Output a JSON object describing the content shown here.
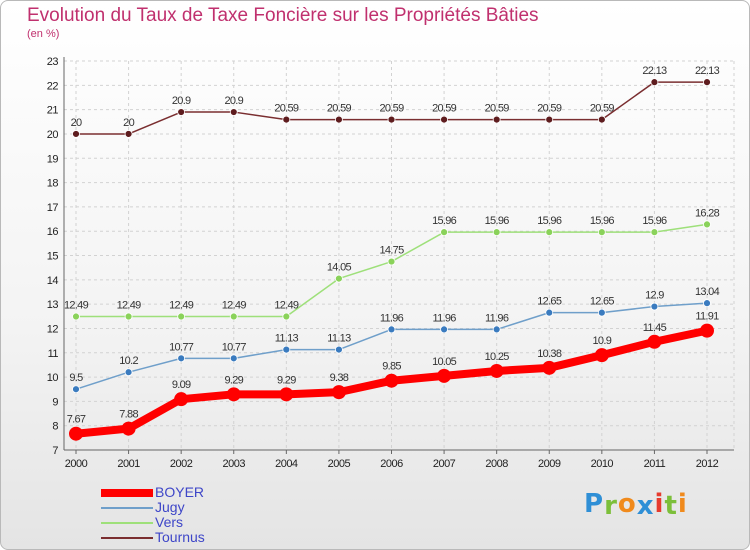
{
  "chart_data": {
    "type": "line",
    "title": "Evolution du Taux de Taxe Foncière sur les Propriétés Bâties",
    "subtitle": "(en %)",
    "xlabel": "",
    "ylabel": "",
    "ylim": [
      7,
      23
    ],
    "yticks": [
      "7",
      "8",
      "9",
      "10",
      "11",
      "12",
      "13",
      "14",
      "15",
      "16",
      "17",
      "18",
      "19",
      "20",
      "21",
      "22",
      "23"
    ],
    "categories": [
      "2000",
      "2001",
      "2002",
      "2003",
      "2004",
      "2005",
      "2006",
      "2007",
      "2008",
      "2009",
      "2010",
      "2011",
      "2012"
    ],
    "grid": true,
    "legend_position": "bottom-left",
    "series": [
      {
        "name": "BOYER",
        "color": "#ff0000",
        "values": [
          7.67,
          7.88,
          9.09,
          9.29,
          9.29,
          9.38,
          9.85,
          10.05,
          10.25,
          10.38,
          10.9,
          11.45,
          11.91
        ],
        "labels": [
          "7.67",
          "7.88",
          "9.09",
          "9.29",
          "9.29",
          "9.38",
          "9.85",
          "10.05",
          "10.25",
          "10.38",
          "10.9",
          "11.45",
          "11.91"
        ]
      },
      {
        "name": "Jugy",
        "color": "#6f9fca",
        "values": [
          9.5,
          10.2,
          10.77,
          10.77,
          11.13,
          11.13,
          11.96,
          11.96,
          11.96,
          12.65,
          12.65,
          12.9,
          13.04
        ],
        "labels": [
          "9.5",
          "10.2",
          "10.77",
          "10.77",
          "11.13",
          "11.13",
          "11.96",
          "11.96",
          "11.96",
          "12.65",
          "12.65",
          "12.9",
          "13.04"
        ]
      },
      {
        "name": "Vers",
        "color": "#9ee07a",
        "values": [
          12.49,
          12.49,
          12.49,
          12.49,
          12.49,
          14.05,
          14.75,
          15.96,
          15.96,
          15.96,
          15.96,
          15.96,
          16.28
        ],
        "labels": [
          "12.49",
          "12.49",
          "12.49",
          "12.49",
          "12.49",
          "14.05",
          "14.75",
          "15.96",
          "15.96",
          "15.96",
          "15.96",
          "15.96",
          "16.28"
        ]
      },
      {
        "name": "Tournus",
        "color": "#7a2e30",
        "values": [
          20,
          20,
          20.9,
          20.9,
          20.59,
          20.59,
          20.59,
          20.59,
          20.59,
          20.59,
          20.59,
          22.13,
          22.13
        ],
        "labels": [
          "20",
          "20",
          "20.9",
          "20.9",
          "20.59",
          "20.59",
          "20.59",
          "20.59",
          "20.59",
          "20.59",
          "20.59",
          "22.13",
          "22.13"
        ]
      }
    ]
  },
  "legend": {
    "items": [
      {
        "label": "BOYER",
        "color": "#ff0000"
      },
      {
        "label": "Jugy",
        "color": "#6f9fca"
      },
      {
        "label": "Vers",
        "color": "#9ee07a"
      },
      {
        "label": "Tournus",
        "color": "#7a2e30"
      }
    ]
  },
  "logo": {
    "text": "Proxiti",
    "letters": [
      {
        "ch": "P",
        "color": "#2f8fd6"
      },
      {
        "ch": "r",
        "color": "#7cbf3a"
      },
      {
        "ch": "o",
        "color": "#f08a1c"
      },
      {
        "ch": "x",
        "color": "#2f8fd6"
      },
      {
        "ch": "i",
        "color": "#e63b2e"
      },
      {
        "ch": "t",
        "color": "#7cbf3a"
      },
      {
        "ch": "i",
        "color": "#f08a1c"
      }
    ]
  }
}
